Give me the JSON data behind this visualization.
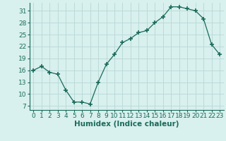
{
  "x": [
    0,
    1,
    2,
    3,
    4,
    5,
    6,
    7,
    8,
    9,
    10,
    11,
    12,
    13,
    14,
    15,
    16,
    17,
    18,
    19,
    20,
    21,
    22,
    23
  ],
  "y": [
    16,
    17,
    15.5,
    15,
    11,
    8,
    8,
    7.5,
    13,
    17.5,
    20,
    23,
    24,
    25.5,
    26,
    28,
    29.5,
    32,
    32,
    31.5,
    31,
    29,
    22.5,
    20
  ],
  "line_color": "#1a6b5a",
  "marker": "+",
  "marker_size": 4,
  "marker_linewidth": 1.2,
  "bg_color": "#d8f0ee",
  "grid_color": "#b8d8d5",
  "xlabel": "Humidex (Indice chaleur)",
  "xlim": [
    -0.5,
    23.5
  ],
  "ylim": [
    6,
    33
  ],
  "yticks": [
    7,
    10,
    13,
    16,
    19,
    22,
    25,
    28,
    31
  ],
  "xticks": [
    0,
    1,
    2,
    3,
    4,
    5,
    6,
    7,
    8,
    9,
    10,
    11,
    12,
    13,
    14,
    15,
    16,
    17,
    18,
    19,
    20,
    21,
    22,
    23
  ],
  "tick_color": "#1a6b5a",
  "label_fontsize": 6.5,
  "axis_label_fontsize": 7.5
}
